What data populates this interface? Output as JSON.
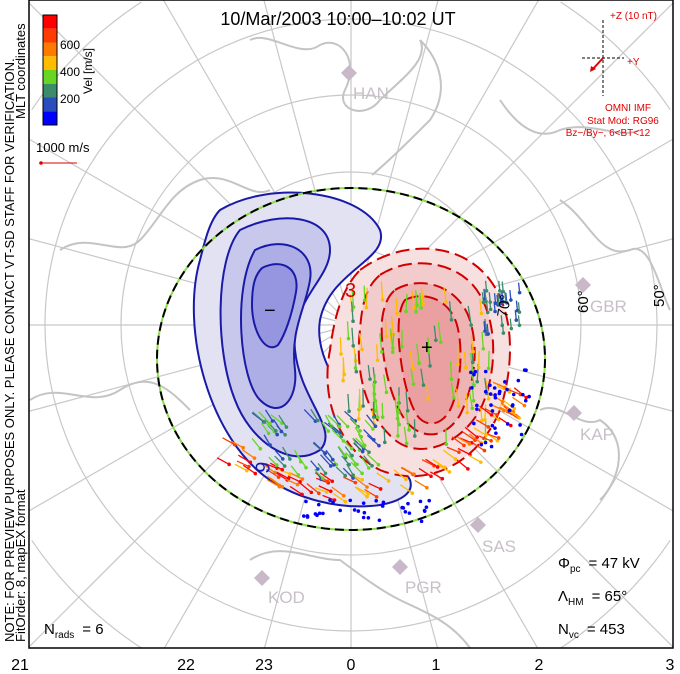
{
  "title": "10/Mar/2003 10:00–10:02 UT",
  "side_notes": {
    "note": "NOTE: FOR PREVIEW PURPOSES ONLY. PLEASE CONTACT VT-SD STAFF FOR VERIFICATION.",
    "fit": "FitOrder: 8, mapEX format",
    "coords": "MLT coordinates"
  },
  "colorbar": {
    "title": "Vel [m/s]",
    "ticks": [
      "600",
      "400",
      "200"
    ],
    "colors": [
      "#ff0000",
      "#ff3c00",
      "#ff7a00",
      "#ffbb00",
      "#66d622",
      "#3c8c6c",
      "#2a4cbc",
      "#0000ff"
    ]
  },
  "scale_vector": {
    "label": "1000 m/s",
    "color": "#e00000"
  },
  "imf": {
    "z_label": "+Z (10 nT)",
    "y_label": "+Y",
    "source": "OMNI IMF",
    "model": "Stat Mod: RG96",
    "bin": "Bz−/By−, 6<BT<12"
  },
  "stats": {
    "phi_symbol": "Φ",
    "phi_sub": "pc",
    "phi_value": "= 47 kV",
    "lambda_symbol": "Λ",
    "lambda_sub": "HM",
    "lambda_value": "= 65°",
    "nvc_symbol": "N",
    "nvc_sub": "vc",
    "nvc_value": "= 453",
    "nrads_symbol": "N",
    "nrads_sub": "rads",
    "nrads_value": "= 6"
  },
  "mlt_labels": [
    "21",
    "22",
    "23",
    "0",
    "1",
    "2",
    "3"
  ],
  "lat_labels": [
    "50°",
    "60°",
    "70°"
  ],
  "stations": [
    "HAN",
    "GBR",
    "KAP",
    "SAS",
    "PGR",
    "KOD"
  ],
  "contours": {
    "min_marker": "−",
    "max_marker": "+",
    "neg_label": "9",
    "pos_label": "3"
  },
  "colors": {
    "negative": "#1a1aa0",
    "positive": "#d00000",
    "hm_boundary_a": "#000000",
    "hm_boundary_b": "#88dd44"
  }
}
